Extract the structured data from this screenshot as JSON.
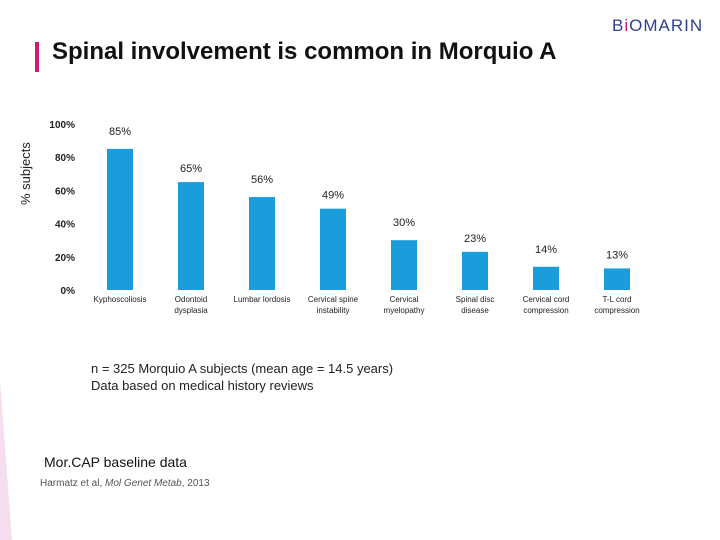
{
  "title": "Spinal involvement is common in Morquio A",
  "logo": {
    "prefix": "B",
    "accent": "i",
    "suffix": "OMARIN"
  },
  "colors": {
    "bar": "#1b9ddb",
    "accent": "#d6186e",
    "logo": "#2f3f8f"
  },
  "chart_data": {
    "type": "bar",
    "ylabel": "% subjects",
    "ylim": [
      0,
      100
    ],
    "yticks": [
      "0%",
      "20%",
      "40%",
      "60%",
      "80%",
      "100%"
    ],
    "categories": [
      [
        "Kyphoscoliosis"
      ],
      [
        "Odontoid",
        "dysplasia"
      ],
      [
        "Lumbar lordosis"
      ],
      [
        "Cervical spine",
        "instability"
      ],
      [
        "Cervical",
        "myelopathy"
      ],
      [
        "Spinal disc",
        "disease"
      ],
      [
        "Cervical cord",
        "compression"
      ],
      [
        "T-L cord",
        "compression"
      ]
    ],
    "values": [
      85,
      65,
      56,
      49,
      30,
      23,
      14,
      13
    ],
    "labels": [
      "85%",
      "65%",
      "56%",
      "49%",
      "30%",
      "23%",
      "14%",
      "13%"
    ]
  },
  "footnote": {
    "line1": "n = 325 Morquio A subjects (mean age = 14.5 years)",
    "line2": "Data based on medical history reviews"
  },
  "source": {
    "title": "Mor.CAP baseline data",
    "citation_prefix": "Harmatz et al, ",
    "citation_journal": "Mol Genet Metab",
    "citation_suffix": ", 2013"
  }
}
